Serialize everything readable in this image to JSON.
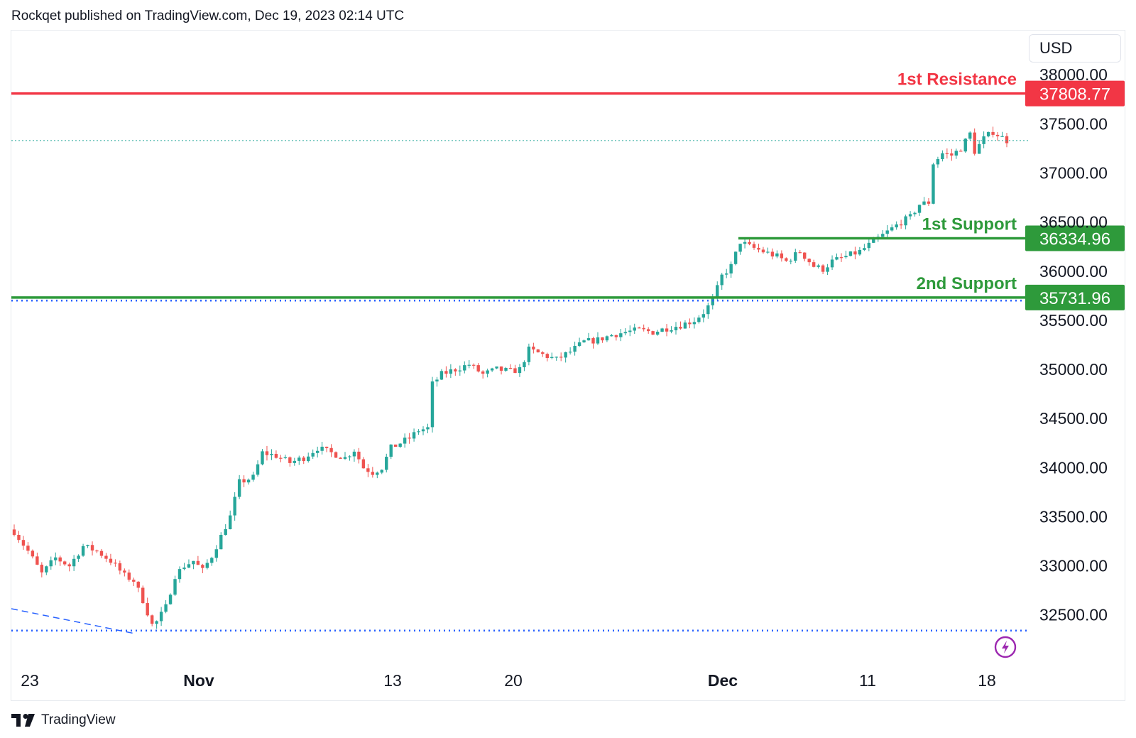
{
  "header": {
    "published_line": "Rockqet published on TradingView.com, Dec 19, 2023 02:14 UTC"
  },
  "footer": {
    "brand": "TradingView"
  },
  "currency": "USD",
  "colors": {
    "up": "#26a69a",
    "down": "#ef5350",
    "resistance": "#f23645",
    "support": "#2e9a3b",
    "dotted": "#2962ff",
    "price_line": "#26a69a",
    "lightning": "#9c27b0"
  },
  "chart_data": {
    "type": "candlestick",
    "title": "",
    "xlabel": "",
    "ylabel": "",
    "ylim": [
      32100,
      38450
    ],
    "y_ticks": [
      "38000.00",
      "37500.00",
      "37000.00",
      "36500.00",
      "36000.00",
      "35500.00",
      "35000.00",
      "34500.00",
      "34000.00",
      "33500.00",
      "33000.00",
      "32500.00"
    ],
    "x_ticks": [
      {
        "label": "23",
        "bold": false
      },
      {
        "label": "Nov",
        "bold": true
      },
      {
        "label": "13",
        "bold": false
      },
      {
        "label": "20",
        "bold": false
      },
      {
        "label": "Dec",
        "bold": true
      },
      {
        "label": "11",
        "bold": false
      },
      {
        "label": "18",
        "bold": false
      }
    ],
    "levels": [
      {
        "name": "1st Resistance",
        "value": 37808.77,
        "tag": "37808.77",
        "kind": "resistance"
      },
      {
        "name": "1st Support",
        "value": 36334.96,
        "tag": "36334.96",
        "kind": "support",
        "partial": true
      },
      {
        "name": "2nd Support",
        "value": 35731.96,
        "tag": "35731.96",
        "kind": "support"
      }
    ],
    "dotted_levels": [
      35700,
      32340
    ],
    "last_price": 37330,
    "close_path": [
      [
        0,
        33350
      ],
      [
        3,
        33150
      ],
      [
        6,
        32920
      ],
      [
        9,
        33080
      ],
      [
        12,
        33000
      ],
      [
        15,
        33200
      ],
      [
        18,
        33150
      ],
      [
        21,
        33050
      ],
      [
        24,
        32900
      ],
      [
        26,
        32850
      ],
      [
        28,
        32650
      ],
      [
        30,
        32400
      ],
      [
        31,
        32430
      ],
      [
        33,
        32580
      ],
      [
        35,
        32900
      ],
      [
        37,
        33000
      ],
      [
        39,
        33050
      ],
      [
        41,
        32950
      ],
      [
        43,
        33100
      ],
      [
        45,
        33300
      ],
      [
        47,
        33500
      ],
      [
        49,
        33850
      ],
      [
        52,
        33900
      ],
      [
        54,
        34150
      ],
      [
        57,
        34120
      ],
      [
        60,
        34050
      ],
      [
        63,
        34100
      ],
      [
        66,
        34200
      ],
      [
        69,
        34150
      ],
      [
        72,
        34100
      ],
      [
        74,
        34180
      ],
      [
        76,
        34000
      ],
      [
        78,
        33950
      ],
      [
        80,
        34000
      ],
      [
        82,
        34200
      ],
      [
        84,
        34250
      ],
      [
        86,
        34300
      ],
      [
        88,
        34380
      ],
      [
        90,
        34400
      ],
      [
        91,
        34850
      ],
      [
        93,
        34950
      ],
      [
        96,
        35000
      ],
      [
        99,
        35050
      ],
      [
        102,
        34950
      ],
      [
        105,
        35000
      ],
      [
        108,
        34980
      ],
      [
        110,
        35000
      ],
      [
        112,
        35200
      ],
      [
        115,
        35150
      ],
      [
        118,
        35100
      ],
      [
        121,
        35180
      ],
      [
        124,
        35280
      ],
      [
        127,
        35300
      ],
      [
        130,
        35350
      ],
      [
        133,
        35380
      ],
      [
        136,
        35400
      ],
      [
        139,
        35380
      ],
      [
        142,
        35420
      ],
      [
        145,
        35450
      ],
      [
        148,
        35500
      ],
      [
        150,
        35580
      ],
      [
        152,
        35700
      ],
      [
        154,
        35950
      ],
      [
        156,
        36050
      ],
      [
        158,
        36300
      ],
      [
        160,
        36250
      ],
      [
        163,
        36200
      ],
      [
        166,
        36150
      ],
      [
        168,
        36100
      ],
      [
        171,
        36200
      ],
      [
        174,
        36050
      ],
      [
        176,
        36020
      ],
      [
        178,
        36100
      ],
      [
        181,
        36150
      ],
      [
        184,
        36200
      ],
      [
        187,
        36300
      ],
      [
        190,
        36400
      ],
      [
        193,
        36500
      ],
      [
        195,
        36550
      ],
      [
        197,
        36680
      ],
      [
        199,
        36700
      ],
      [
        200,
        37100
      ],
      [
        202,
        37200
      ],
      [
        204,
        37180
      ],
      [
        206,
        37250
      ],
      [
        208,
        37400
      ],
      [
        209,
        37220
      ],
      [
        211,
        37350
      ],
      [
        213,
        37420
      ],
      [
        215,
        37360
      ],
      [
        216,
        37330
      ]
    ],
    "candle_count": 217,
    "annotations": [
      "1st Resistance",
      "1st Support",
      "2nd Support"
    ]
  }
}
